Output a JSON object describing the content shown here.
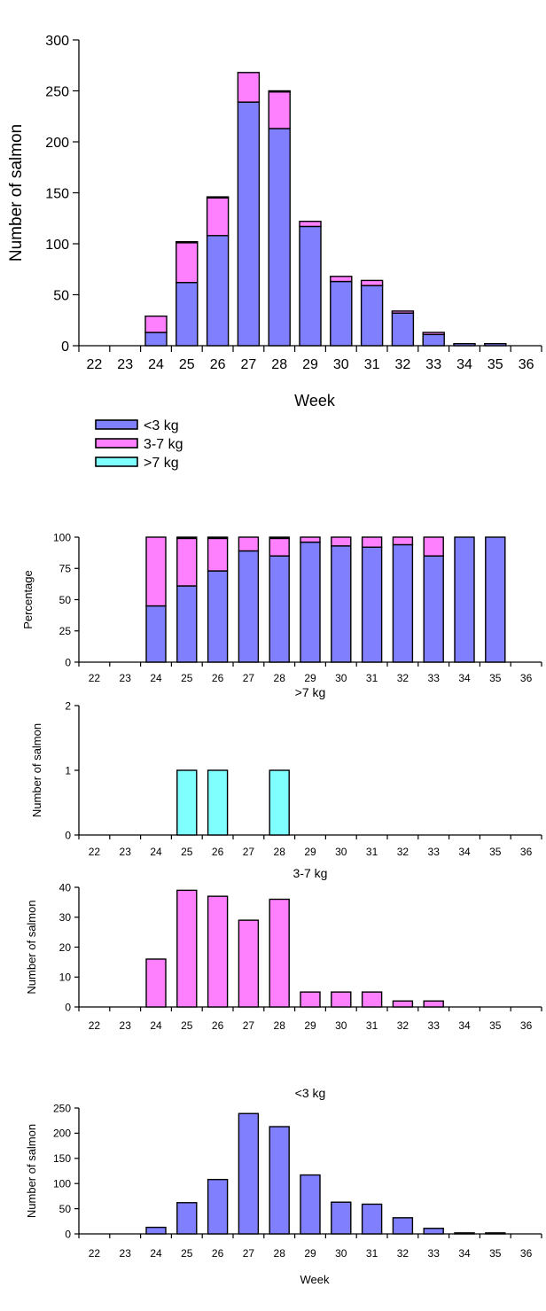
{
  "chart_data": [
    {
      "type": "bar",
      "stacked": true,
      "categories": [
        "22",
        "23",
        "24",
        "25",
        "26",
        "27",
        "28",
        "29",
        "30",
        "31",
        "32",
        "33",
        "34",
        "35",
        "36"
      ],
      "series": [
        {
          "name": "<3 kg",
          "color": "#8080ff",
          "values": [
            0,
            0,
            13,
            62,
            108,
            239,
            213,
            117,
            63,
            59,
            32,
            11,
            2,
            2,
            0
          ]
        },
        {
          "name": "3-7 kg",
          "color": "#ff80ff",
          "values": [
            0,
            0,
            16,
            39,
            37,
            29,
            36,
            5,
            5,
            5,
            2,
            2,
            0,
            0,
            0
          ]
        },
        {
          "name": ">7 kg",
          "color": "#80ffff",
          "values": [
            0,
            0,
            0,
            1,
            1,
            0,
            1,
            0,
            0,
            0,
            0,
            0,
            0,
            0,
            0
          ]
        }
      ],
      "title": "",
      "xlabel": "Week",
      "ylabel": "Number of salmon",
      "ylim": [
        0,
        300
      ],
      "yticks": [
        "0",
        "50",
        "100",
        "150",
        "200",
        "250",
        "300"
      ],
      "legend_position": "below"
    },
    {
      "type": "bar",
      "stacked": true,
      "categories": [
        "22",
        "23",
        "24",
        "25",
        "26",
        "27",
        "28",
        "29",
        "30",
        "31",
        "32",
        "33",
        "34",
        "35",
        "36"
      ],
      "series": [
        {
          "name": "<3 kg",
          "color": "#8080ff",
          "values": [
            0,
            0,
            45,
            61,
            73,
            89,
            85,
            96,
            93,
            92,
            94,
            85,
            100,
            100,
            0
          ]
        },
        {
          "name": "3-7 kg",
          "color": "#ff80ff",
          "values": [
            0,
            0,
            55,
            38,
            26,
            11,
            14,
            4,
            7,
            8,
            6,
            15,
            0,
            0,
            0
          ]
        },
        {
          "name": ">7 kg",
          "color": "#80ffff",
          "values": [
            0,
            0,
            0,
            1,
            1,
            0,
            1,
            0,
            0,
            0,
            0,
            0,
            0,
            0,
            0
          ]
        }
      ],
      "title": "",
      "xlabel": "",
      "ylabel": "Percentage",
      "ylim": [
        0,
        100
      ],
      "yticks": [
        "0",
        "25",
        "50",
        "75",
        "100"
      ]
    },
    {
      "type": "bar",
      "categories": [
        "22",
        "23",
        "24",
        "25",
        "26",
        "27",
        "28",
        "29",
        "30",
        "31",
        "32",
        "33",
        "34",
        "35",
        "36"
      ],
      "series": [
        {
          "color": "#80ffff",
          "values": [
            0,
            0,
            0,
            1,
            1,
            0,
            1,
            0,
            0,
            0,
            0,
            0,
            0,
            0,
            0
          ]
        }
      ],
      "title": ">7 kg",
      "xlabel": "",
      "ylabel": "Number of salmon",
      "ylim": [
        0,
        2
      ],
      "yticks": [
        "0",
        "1",
        "2"
      ]
    },
    {
      "type": "bar",
      "categories": [
        "22",
        "23",
        "24",
        "25",
        "26",
        "27",
        "28",
        "29",
        "30",
        "31",
        "32",
        "33",
        "34",
        "35",
        "36"
      ],
      "series": [
        {
          "color": "#ff80ff",
          "values": [
            0,
            0,
            16,
            39,
            37,
            29,
            36,
            5,
            5,
            5,
            2,
            2,
            0,
            0,
            0
          ]
        }
      ],
      "title": "3-7 kg",
      "xlabel": "",
      "ylabel": "Number of salmon",
      "ylim": [
        0,
        40
      ],
      "yticks": [
        "0",
        "10",
        "20",
        "30",
        "40"
      ]
    },
    {
      "type": "bar",
      "categories": [
        "22",
        "23",
        "24",
        "25",
        "26",
        "27",
        "28",
        "29",
        "30",
        "31",
        "32",
        "33",
        "34",
        "35",
        "36"
      ],
      "series": [
        {
          "color": "#8080ff",
          "values": [
            0,
            0,
            13,
            62,
            108,
            239,
            213,
            117,
            63,
            59,
            32,
            11,
            2,
            2,
            0
          ]
        }
      ],
      "title": "<3 kg",
      "xlabel": "Week",
      "ylabel": "Number of salmon",
      "ylim": [
        0,
        250
      ],
      "yticks": [
        "0",
        "50",
        "100",
        "150",
        "200",
        "250"
      ]
    }
  ]
}
